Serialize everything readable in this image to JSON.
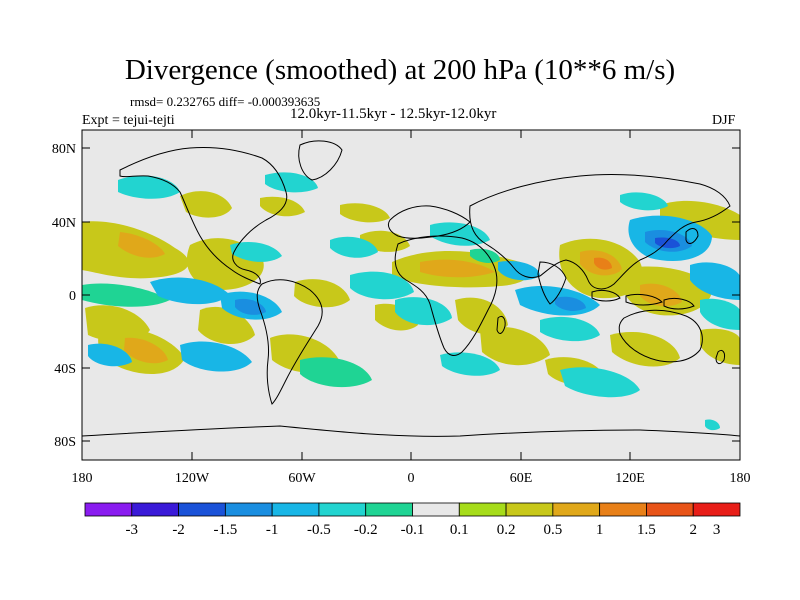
{
  "title": "Divergence (smoothed) at 200 hPa (10**6 m/s)",
  "stats": "rmsd= 0.232765 diff= -0.000393635",
  "period": "12.0kyr-11.5kyr - 12.5kyr-12.0kyr",
  "expt": "Expt = tejui-tejti",
  "season": "DJF",
  "lat_labels": [
    "80N",
    "40N",
    "0",
    "40S",
    "80S"
  ],
  "lon_labels": [
    "180",
    "120W",
    "60W",
    "0",
    "60E",
    "120E",
    "180"
  ],
  "colorbar": {
    "labels": [
      "-3",
      "-2",
      "-1.5",
      "-1",
      "-0.5",
      "-0.2",
      "-0.1",
      "0.1",
      "0.2",
      "0.5",
      "1",
      "1.5",
      "2",
      "3"
    ],
    "colors": [
      "#8a1cf0",
      "#3a1ad8",
      "#1a52d8",
      "#1a8ee0",
      "#18b6e6",
      "#22d4d0",
      "#1fd494",
      "#e8e8e8",
      "#a6dc1a",
      "#c8c81a",
      "#e0a81a",
      "#e88018",
      "#e85418",
      "#e81e18"
    ]
  },
  "colors": {
    "background": "#e8e8e8",
    "coast": "#000000"
  }
}
